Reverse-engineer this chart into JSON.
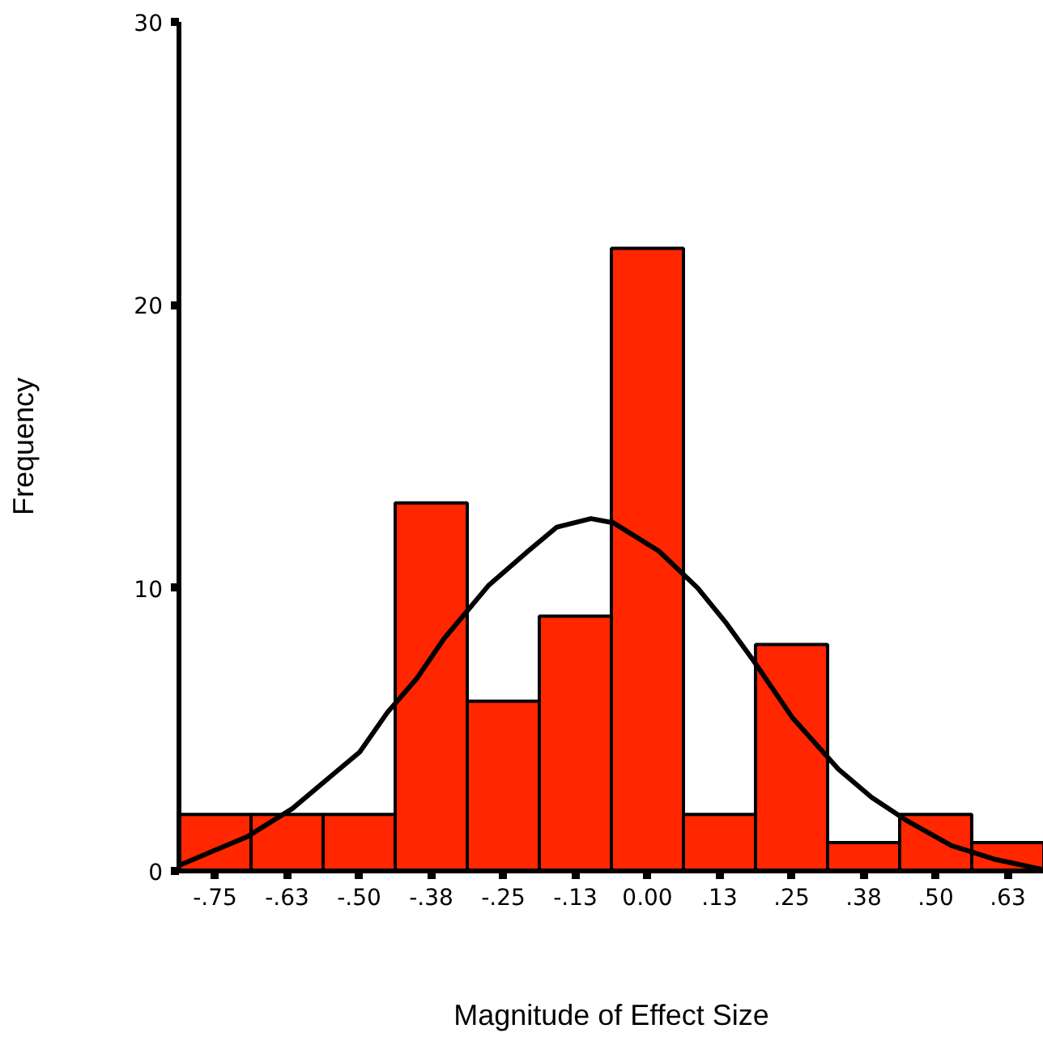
{
  "chart_data": {
    "type": "histogram",
    "xlabel": "Magnitude of Effect Size",
    "ylabel": "Frequency",
    "bins": [
      -0.8125,
      -0.6875,
      -0.5625,
      -0.4375,
      -0.3125,
      -0.1875,
      -0.0625,
      0.0625,
      0.1875,
      0.3125,
      0.4375,
      0.5625,
      0.6875
    ],
    "values": [
      2,
      2,
      2,
      13,
      6,
      9,
      22,
      2,
      8,
      1,
      2,
      1
    ],
    "color": "#ff2600",
    "series": [
      {
        "type": "line",
        "color": "#000000",
        "x": [
          -0.812,
          -0.695,
          -0.616,
          -0.546,
          -0.499,
          -0.451,
          -0.4,
          -0.353,
          -0.275,
          -0.207,
          -0.157,
          -0.098,
          -0.059,
          0.02,
          0.087,
          0.135,
          0.185,
          0.252,
          0.331,
          0.389,
          0.448,
          0.527,
          0.605,
          0.686
        ],
        "values": [
          0.2,
          1.2,
          2.2,
          3.4,
          4.2,
          5.6,
          6.8,
          8.2,
          10.1,
          11.3,
          12.15,
          12.45,
          12.3,
          11.3,
          10.0,
          8.8,
          7.4,
          5.4,
          3.6,
          2.6,
          1.8,
          0.9,
          0.4,
          0.05
        ]
      }
    ],
    "xlim": [
      -0.8125,
      0.6875
    ],
    "ylim": [
      0,
      30
    ],
    "yticks": [
      0,
      10,
      20,
      30
    ],
    "xticks": [
      {
        "value": -0.75,
        "label": "-.75"
      },
      {
        "value": -0.625,
        "label": "-.63"
      },
      {
        "value": -0.5,
        "label": "-.50"
      },
      {
        "value": -0.375,
        "label": "-.38"
      },
      {
        "value": -0.25,
        "label": "-.25"
      },
      {
        "value": -0.125,
        "label": "-.13"
      },
      {
        "value": 0,
        "label": "0.00"
      },
      {
        "value": 0.125,
        "label": ".13"
      },
      {
        "value": 0.25,
        "label": ".25"
      },
      {
        "value": 0.375,
        "label": ".38"
      },
      {
        "value": 0.5,
        "label": ".50"
      },
      {
        "value": 0.625,
        "label": ".63"
      }
    ],
    "grid": false
  }
}
